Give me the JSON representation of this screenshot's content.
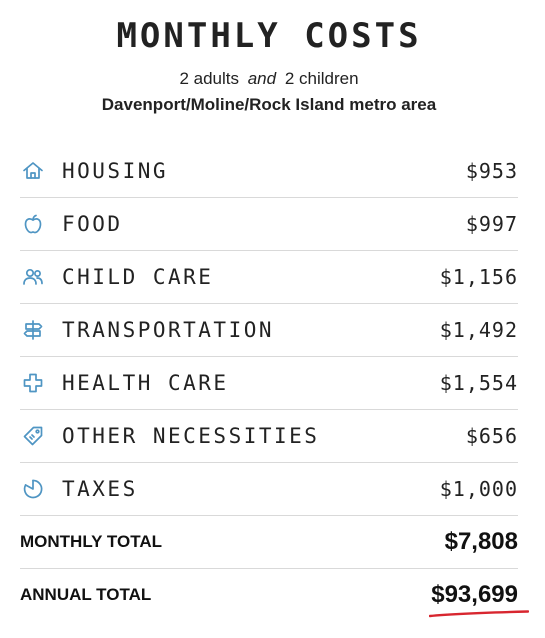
{
  "header": {
    "title": "MONTHLY COSTS",
    "adults": "2 adults",
    "conj": "and",
    "children": "2 children",
    "area": "Davenport/Moline/Rock Island metro area"
  },
  "rows": [
    {
      "icon": "house-icon",
      "label": "HOUSING",
      "value": "$953"
    },
    {
      "icon": "apple-icon",
      "label": "FOOD",
      "value": "$997"
    },
    {
      "icon": "people-icon",
      "label": "CHILD CARE",
      "value": "$1,156"
    },
    {
      "icon": "signpost-icon",
      "label": "TRANSPORTATION",
      "value": "$1,492"
    },
    {
      "icon": "medical-cross-icon",
      "label": "HEALTH CARE",
      "value": "$1,554"
    },
    {
      "icon": "tag-icon",
      "label": "OTHER NECESSITIES",
      "value": "$656"
    },
    {
      "icon": "pie-chart-icon",
      "label": "TAXES",
      "value": "$1,000"
    }
  ],
  "totals": {
    "monthly_label": "MONTHLY TOTAL",
    "monthly_value": "$7,808",
    "annual_label": "ANNUAL TOTAL",
    "annual_value": "$93,699"
  },
  "colors": {
    "icon": "#4f95c3",
    "underline": "#d8262f",
    "divider": "#d9d9d9"
  }
}
